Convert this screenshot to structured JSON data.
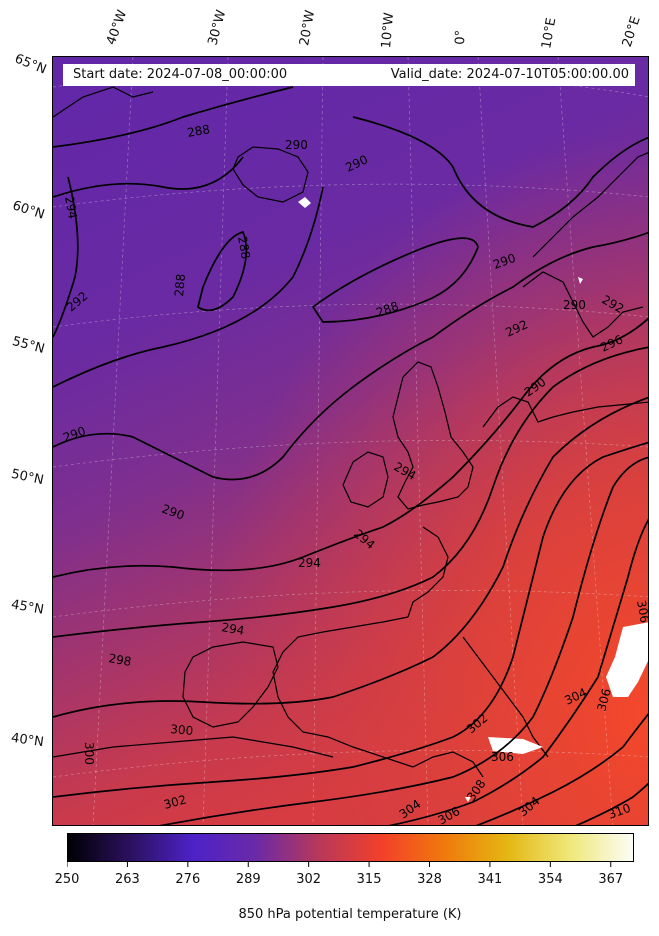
{
  "header": {
    "start_date": "Start date: 2024-07-08_00:00:00",
    "valid_date": "Valid_date: 2024-07-10T05:00:00.00"
  },
  "longitude_labels": [
    "40°W",
    "30°W",
    "20°W",
    "10°W",
    "0°",
    "10°E",
    "20°E"
  ],
  "latitude_labels": [
    "65°N",
    "60°N",
    "55°N",
    "50°N",
    "45°N",
    "40°N"
  ],
  "contour_labels": [
    "288",
    "290",
    "294",
    "290",
    "292",
    "288",
    "290",
    "288",
    "288",
    "290",
    "292",
    "290",
    "292",
    "296",
    "290",
    "290",
    "294",
    "294",
    "294",
    "294",
    "298",
    "300",
    "300",
    "302",
    "302",
    "304",
    "306",
    "306",
    "306",
    "308",
    "304",
    "310",
    "306",
    "304"
  ],
  "colorbar": {
    "ticks": [
      "250",
      "263",
      "276",
      "289",
      "302",
      "315",
      "328",
      "341",
      "354",
      "367"
    ],
    "min": 250,
    "max": 372,
    "label": "850 hPa potential temperature (K)",
    "colormap": [
      "#000004",
      "#2c115f",
      "#4d22c8",
      "#6a2aa6",
      "#b8385a",
      "#f3402a",
      "#f07a0c",
      "#e4b713",
      "#efe87a",
      "#fcfdf6"
    ]
  },
  "colors": {
    "field_north": "#6528a6",
    "field_mid": "#7a2e93",
    "field_south": "#cc3a48",
    "field_southeast": "#ec4530",
    "contour": "#000000",
    "missing": "#ffffff"
  }
}
